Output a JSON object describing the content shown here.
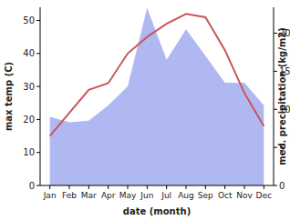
{
  "chart_data": {
    "type": "line",
    "categories": [
      "Jan",
      "Feb",
      "Mar",
      "Apr",
      "May",
      "Jun",
      "Jul",
      "Aug",
      "Sep",
      "Oct",
      "Nov",
      "Dec"
    ],
    "x_label": "date (month)",
    "y_label": "max temp (C)",
    "y2_label": "med. precipitation (kg/m2)",
    "ylim": [
      0,
      54
    ],
    "yticks": [
      0,
      10,
      20,
      30,
      40,
      50
    ],
    "y2lim": [
      0,
      23.4
    ],
    "y2ticks": [
      0,
      5,
      10,
      15,
      20
    ],
    "series": [
      {
        "name": "med. precipitation",
        "type": "area",
        "axis": "y2",
        "color": "#b0b8f2",
        "values": [
          9.0,
          8.3,
          8.5,
          10.5,
          13.0,
          23.3,
          16.5,
          20.5,
          17.0,
          13.5,
          13.5,
          10.5
        ]
      },
      {
        "name": "max temp",
        "type": "line",
        "color": "#c9565c",
        "values": [
          15,
          22,
          29,
          31,
          40,
          45,
          49,
          52,
          51,
          41,
          28,
          18
        ]
      }
    ]
  }
}
